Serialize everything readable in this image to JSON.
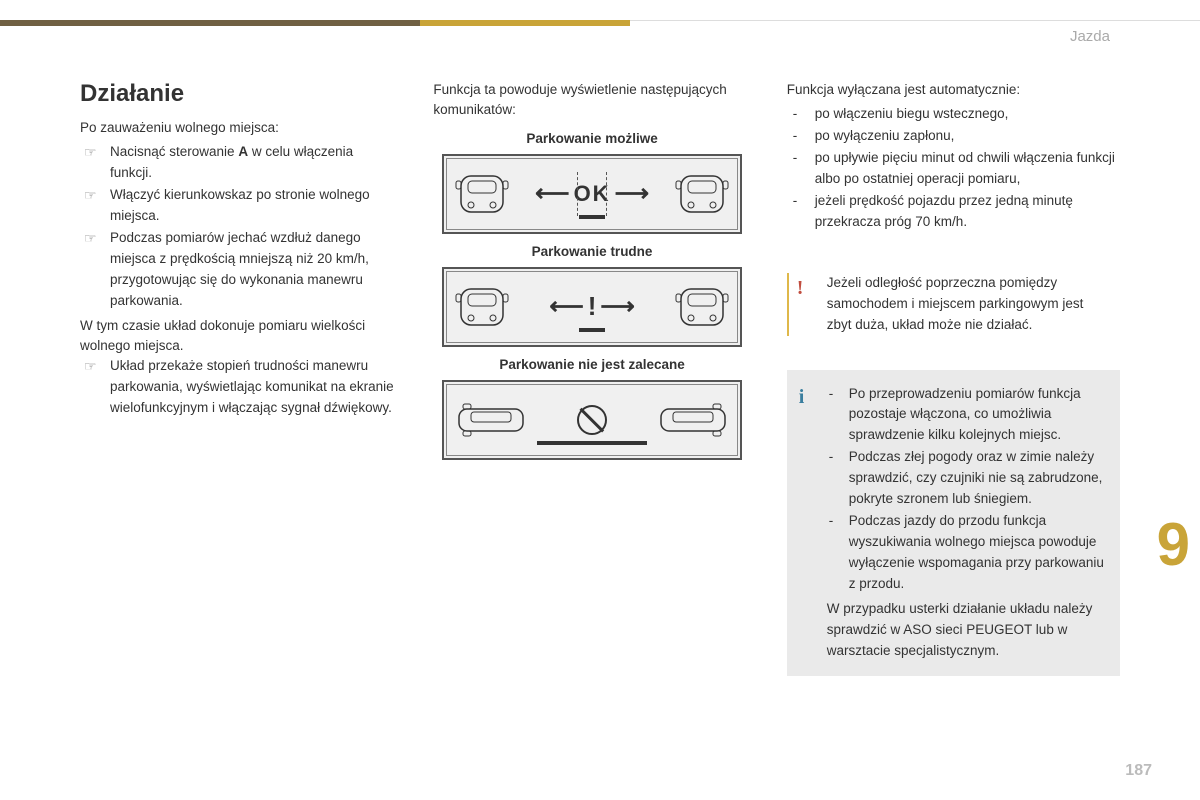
{
  "chapter_label": "Jazda",
  "big_number": "9",
  "page_number": "187",
  "col1": {
    "heading": "Działanie",
    "intro": "Po zauważeniu wolnego miejsca:",
    "steps": [
      "Nacisnąć sterowanie <b>A</b> w celu włączenia funkcji.",
      "Włączyć kierunkowskaz po stronie wolnego miejsca.",
      "Podczas pomiarów jechać wzdłuż danego miejsca z prędkością mniejszą niż 20 km/h, przygotowując się do wykonania manewru parkowania."
    ],
    "plain": "W tym czasie układ dokonuje pomiaru wielkości wolnego miejsca.",
    "steps2": [
      "Układ przekaże stopień trudności manewru parkowania, wyświetlając komunikat na ekranie wielofunkcyjnym i włączając sygnał dźwiękowy."
    ]
  },
  "col2": {
    "intro": "Funkcja ta powoduje wyświetlenie następujących komunikatów:",
    "cap_ok": "Parkowanie możliwe",
    "ok_text": "OK",
    "cap_diff": "Parkowanie trudne",
    "cap_no": "Parkowanie nie jest zalecane"
  },
  "col3": {
    "intro": "Funkcja wyłączana jest automatycznie:",
    "items": [
      "po włączeniu biegu wstecznego,",
      "po wyłączeniu zapłonu,",
      "po upływie pięciu minut od chwili włączenia funkcji albo po ostatniej operacji pomiaru,",
      "jeżeli prędkość pojazdu przez jedną minutę przekracza próg 70 km/h."
    ],
    "warn_text": "Jeżeli odległość poprzeczna pomiędzy samochodem i miejscem parkingowym jest zbyt duża, układ może nie działać.",
    "info_items": [
      "Po przeprowadzeniu pomiarów funkcja pozostaje włączona, co umożliwia sprawdzenie kilku kolejnych miejsc.",
      "Podczas złej pogody oraz w zimie należy sprawdzić, czy czujniki nie są zabrudzone, pokryte szronem lub śniegiem.",
      "Podczas jazdy do przodu funkcja wyszukiwania wolnego miejsca powoduje wyłączenie wspomagania przy parkowaniu z przodu."
    ],
    "info_tail": "W przypadku usterki działanie układu należy sprawdzić w ASO sieci PEUGEOT lub w warsztacie specjalistycznym."
  }
}
